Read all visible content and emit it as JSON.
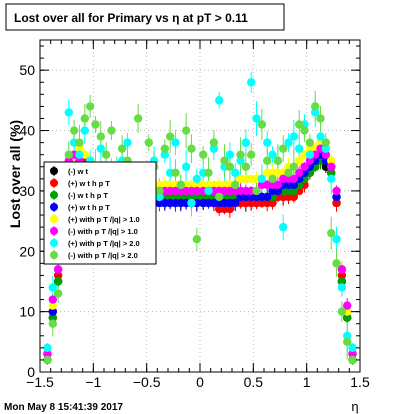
{
  "title": "Lost over all for Primary vs   η at pT > 0.11",
  "timestamp": "Mon May  8 15:41:39 2017",
  "chart_data": {
    "type": "scatter",
    "xlabel": "η",
    "ylabel": "Lost over all (%)",
    "xlim": [
      -1.5,
      1.5
    ],
    "ylim": [
      0,
      55
    ],
    "xticks": [
      -1.5,
      -1,
      -0.5,
      0,
      0.5,
      1,
      1.5
    ],
    "xtick_labels": [
      "−1.5",
      "−1",
      "−0.5",
      "0",
      "0.5",
      "1",
      "1.5"
    ],
    "yticks": [
      0,
      10,
      20,
      30,
      40,
      50
    ],
    "ytick_labels": [
      "0",
      "10",
      "20",
      "30",
      "40",
      "50"
    ],
    "grid": true,
    "legend_position": "left",
    "series": [
      {
        "name": "(-) w t",
        "color": "#000000",
        "marker": "circle",
        "x": [
          -1.43,
          -1.38,
          -1.33,
          -1.28,
          -1.23,
          -1.18,
          -1.13,
          -1.08,
          -1.03,
          -0.98,
          -0.93,
          -0.88,
          -0.83,
          -0.78,
          -0.73,
          -0.68,
          -0.63,
          -0.58,
          -0.53,
          -0.48,
          -0.43,
          -0.38,
          -0.33,
          -0.28,
          -0.23,
          -0.18,
          -0.13,
          -0.08,
          -0.03,
          0.03,
          0.08,
          0.13,
          0.18,
          0.23,
          0.28,
          0.33,
          0.38,
          0.43,
          0.48,
          0.53,
          0.58,
          0.63,
          0.68,
          0.73,
          0.78,
          0.83,
          0.88,
          0.93,
          0.98,
          1.03,
          1.08,
          1.13,
          1.18,
          1.23,
          1.28,
          1.33,
          1.38,
          1.43
        ],
        "y": [
          2,
          9,
          15,
          28,
          31,
          33,
          34,
          35,
          34,
          33,
          32,
          31,
          31,
          30,
          30,
          29,
          29,
          29,
          28,
          28,
          28,
          28,
          28,
          28,
          28,
          28,
          28,
          28,
          28,
          28,
          28,
          28,
          28,
          28,
          28,
          28,
          28,
          28,
          28,
          28,
          29,
          29,
          29,
          29,
          29,
          30,
          30,
          31,
          32,
          33,
          34,
          35,
          34,
          33,
          28,
          15,
          9,
          2
        ]
      },
      {
        "name": "(+) w t h p T",
        "color": "#ff0000",
        "marker": "circle",
        "x": [
          -1.43,
          -1.38,
          -1.33,
          -1.28,
          -1.23,
          -1.18,
          -1.13,
          -1.08,
          -1.03,
          -0.98,
          -0.93,
          -0.88,
          -0.83,
          -0.78,
          -0.73,
          -0.68,
          -0.63,
          -0.58,
          -0.53,
          -0.48,
          -0.43,
          -0.38,
          -0.33,
          -0.28,
          -0.23,
          -0.18,
          -0.13,
          -0.08,
          -0.03,
          0.03,
          0.08,
          0.13,
          0.18,
          0.23,
          0.28,
          0.33,
          0.38,
          0.43,
          0.48,
          0.53,
          0.58,
          0.63,
          0.68,
          0.73,
          0.78,
          0.83,
          0.88,
          0.93,
          0.98,
          1.03,
          1.08,
          1.13,
          1.18,
          1.23,
          1.28,
          1.33,
          1.38,
          1.43
        ],
        "y": [
          3,
          10,
          16,
          29,
          32,
          34,
          35,
          35,
          33,
          31,
          30,
          30,
          30,
          29,
          29,
          29,
          28,
          28,
          28,
          28,
          28,
          28,
          28,
          28,
          28,
          28,
          28,
          28,
          28,
          28,
          28,
          28,
          27,
          27,
          27,
          28,
          28,
          28,
          28,
          28,
          28,
          28,
          28,
          29,
          29,
          29,
          29,
          30,
          31,
          33,
          35,
          36,
          35,
          34,
          28,
          16,
          9,
          3
        ]
      },
      {
        "name": "(-) w t h p T",
        "color": "#00a000",
        "marker": "circle",
        "x": [
          -1.43,
          -1.38,
          -1.33,
          -1.28,
          -1.23,
          -1.18,
          -1.13,
          -1.08,
          -1.03,
          -0.98,
          -0.93,
          -0.88,
          -0.83,
          -0.78,
          -0.73,
          -0.68,
          -0.63,
          -0.58,
          -0.53,
          -0.48,
          -0.43,
          -0.38,
          -0.33,
          -0.28,
          -0.23,
          -0.18,
          -0.13,
          -0.08,
          -0.03,
          0.03,
          0.08,
          0.13,
          0.18,
          0.23,
          0.28,
          0.33,
          0.38,
          0.43,
          0.48,
          0.53,
          0.58,
          0.63,
          0.68,
          0.73,
          0.78,
          0.83,
          0.88,
          0.93,
          0.98,
          1.03,
          1.08,
          1.13,
          1.18,
          1.23,
          1.28,
          1.33,
          1.38,
          1.43
        ],
        "y": [
          2,
          9,
          15,
          30,
          33,
          34,
          35,
          34,
          33,
          32,
          31,
          31,
          30,
          30,
          30,
          29,
          29,
          29,
          29,
          29,
          29,
          29,
          29,
          29,
          29,
          29,
          29,
          29,
          29,
          29,
          29,
          29,
          29,
          29,
          29,
          29,
          29,
          29,
          29,
          29,
          29,
          29,
          29,
          30,
          30,
          30,
          30,
          31,
          32,
          33,
          34,
          35,
          35,
          33,
          29,
          15,
          9,
          2
        ]
      },
      {
        "name": "(+) w t h p T",
        "color": "#0000ff",
        "marker": "circle",
        "x": [
          -1.43,
          -1.38,
          -1.33,
          -1.28,
          -1.23,
          -1.18,
          -1.13,
          -1.08,
          -1.03,
          -0.98,
          -0.93,
          -0.88,
          -0.83,
          -0.78,
          -0.73,
          -0.68,
          -0.63,
          -0.58,
          -0.53,
          -0.48,
          -0.43,
          -0.38,
          -0.33,
          -0.28,
          -0.23,
          -0.18,
          -0.13,
          -0.08,
          -0.03,
          0.03,
          0.08,
          0.13,
          0.18,
          0.23,
          0.28,
          0.33,
          0.38,
          0.43,
          0.48,
          0.53,
          0.58,
          0.63,
          0.68,
          0.73,
          0.78,
          0.83,
          0.88,
          0.93,
          0.98,
          1.03,
          1.08,
          1.13,
          1.18,
          1.23,
          1.28,
          1.33,
          1.38,
          1.43
        ],
        "y": [
          3,
          10,
          17,
          30,
          32,
          33,
          33,
          32,
          31,
          30,
          30,
          30,
          29,
          29,
          29,
          29,
          28,
          28,
          28,
          28,
          28,
          28,
          28,
          28,
          28,
          28,
          28,
          28,
          28,
          28,
          28,
          28,
          28,
          28,
          28,
          28,
          29,
          29,
          29,
          29,
          29,
          29,
          30,
          30,
          31,
          31,
          31,
          32,
          33,
          34,
          35,
          36,
          35,
          34,
          29,
          17,
          10,
          3
        ]
      },
      {
        "name": "(+) with p T /|q| > 1.0",
        "color": "#ffff00",
        "marker": "circle",
        "x": [
          -1.43,
          -1.38,
          -1.33,
          -1.28,
          -1.23,
          -1.18,
          -1.13,
          -1.08,
          -1.03,
          -0.98,
          -0.93,
          -0.88,
          -0.83,
          -0.78,
          -0.73,
          -0.68,
          -0.63,
          -0.58,
          -0.53,
          -0.48,
          -0.43,
          -0.38,
          -0.33,
          -0.28,
          -0.23,
          -0.18,
          -0.13,
          -0.08,
          -0.03,
          0.03,
          0.08,
          0.13,
          0.18,
          0.23,
          0.28,
          0.33,
          0.38,
          0.43,
          0.48,
          0.53,
          0.58,
          0.63,
          0.68,
          0.73,
          0.78,
          0.83,
          0.88,
          0.93,
          0.98,
          1.03,
          1.08,
          1.13,
          1.18,
          1.23,
          1.28,
          1.33,
          1.38,
          1.43
        ],
        "y": [
          3,
          11,
          17,
          32,
          34,
          36,
          37,
          36,
          35,
          34,
          33,
          33,
          33,
          32,
          32,
          32,
          32,
          32,
          32,
          32,
          31,
          31,
          31,
          31,
          31,
          31,
          31,
          31,
          31,
          31,
          31,
          31,
          31,
          31,
          31,
          31,
          32,
          32,
          32,
          32,
          32,
          33,
          33,
          33,
          33,
          34,
          34,
          35,
          36,
          37,
          37,
          38,
          37,
          35,
          30,
          17,
          10,
          3
        ]
      },
      {
        "name": "(-) with p T /|q| > 1.0",
        "color": "#ff00ff",
        "marker": "circle",
        "x": [
          -1.43,
          -1.38,
          -1.33,
          -1.28,
          -1.23,
          -1.18,
          -1.13,
          -1.08,
          -1.03,
          -0.98,
          -0.93,
          -0.88,
          -0.83,
          -0.78,
          -0.73,
          -0.68,
          -0.63,
          -0.58,
          -0.53,
          -0.48,
          -0.43,
          -0.38,
          -0.33,
          -0.28,
          -0.23,
          -0.18,
          -0.13,
          -0.08,
          -0.03,
          0.03,
          0.08,
          0.13,
          0.18,
          0.23,
          0.28,
          0.33,
          0.38,
          0.43,
          0.48,
          0.53,
          0.58,
          0.63,
          0.68,
          0.73,
          0.78,
          0.83,
          0.88,
          0.93,
          0.98,
          1.03,
          1.08,
          1.13,
          1.18,
          1.23,
          1.28,
          1.33,
          1.38,
          1.43
        ],
        "y": [
          3,
          12,
          17,
          33,
          35,
          36,
          35,
          34,
          33,
          32,
          32,
          31,
          31,
          31,
          31,
          30,
          30,
          30,
          30,
          30,
          30,
          30,
          30,
          30,
          30,
          30,
          30,
          30,
          30,
          30,
          30,
          30,
          30,
          30,
          30,
          30,
          30,
          30,
          30,
          30,
          31,
          31,
          31,
          31,
          32,
          32,
          32,
          33,
          34,
          35,
          36,
          37,
          36,
          34,
          30,
          17,
          11,
          3
        ]
      },
      {
        "name": "(+) with p T /|q| > 2.0",
        "color": "#00ffff",
        "marker": "circle",
        "x": [
          -1.43,
          -1.38,
          -1.33,
          -1.28,
          -1.23,
          -1.18,
          -1.13,
          -1.08,
          -1.03,
          -0.98,
          -0.93,
          -0.88,
          -0.83,
          -0.78,
          -0.73,
          -0.68,
          -0.63,
          -0.58,
          -0.53,
          -0.48,
          -0.43,
          -0.38,
          -0.33,
          -0.28,
          -0.23,
          -0.18,
          -0.13,
          -0.08,
          -0.03,
          0.03,
          0.08,
          0.13,
          0.18,
          0.23,
          0.28,
          0.33,
          0.38,
          0.43,
          0.48,
          0.53,
          0.58,
          0.63,
          0.68,
          0.73,
          0.78,
          0.83,
          0.88,
          0.93,
          0.98,
          1.03,
          1.08,
          1.13,
          1.18,
          1.23,
          1.28,
          1.33,
          1.38,
          1.43
        ],
        "y": [
          4,
          14,
          22,
          24,
          43,
          38,
          36,
          40,
          35,
          34,
          37,
          33,
          34,
          30,
          35,
          38,
          32,
          29,
          33,
          31,
          35,
          29,
          36,
          33,
          38,
          31,
          34,
          28,
          32,
          33,
          30,
          37,
          45,
          34,
          36,
          33,
          35,
          38,
          48,
          42,
          32,
          38,
          36,
          35,
          24,
          38,
          39,
          37,
          41,
          36,
          43,
          39,
          37,
          32,
          22,
          14,
          6,
          4
        ]
      },
      {
        "name": "(-) with p T /|q| > 2.0",
        "color": "#66dd44",
        "marker": "circle",
        "x": [
          -1.43,
          -1.38,
          -1.33,
          -1.28,
          -1.23,
          -1.18,
          -1.13,
          -1.08,
          -1.03,
          -0.98,
          -0.93,
          -0.88,
          -0.83,
          -0.78,
          -0.73,
          -0.68,
          -0.63,
          -0.58,
          -0.53,
          -0.48,
          -0.43,
          -0.38,
          -0.33,
          -0.28,
          -0.23,
          -0.18,
          -0.13,
          -0.08,
          -0.03,
          0.03,
          0.08,
          0.13,
          0.18,
          0.23,
          0.28,
          0.33,
          0.38,
          0.43,
          0.48,
          0.53,
          0.58,
          0.63,
          0.68,
          0.73,
          0.78,
          0.83,
          0.88,
          0.93,
          0.98,
          1.03,
          1.08,
          1.13,
          1.18,
          1.23,
          1.28,
          1.33,
          1.38,
          1.43
        ],
        "y": [
          2,
          8,
          13,
          23,
          36,
          40,
          38,
          42,
          44,
          41,
          39,
          36,
          40,
          33,
          37,
          35,
          31,
          42,
          29,
          38,
          34,
          30,
          37,
          39,
          33,
          31,
          40,
          37,
          22,
          36,
          33,
          38,
          29,
          35,
          34,
          31,
          36,
          34,
          36,
          30,
          41,
          35,
          32,
          35,
          37,
          33,
          34,
          41,
          40,
          38,
          44,
          42,
          38,
          23,
          18,
          10,
          5,
          2
        ]
      }
    ]
  }
}
